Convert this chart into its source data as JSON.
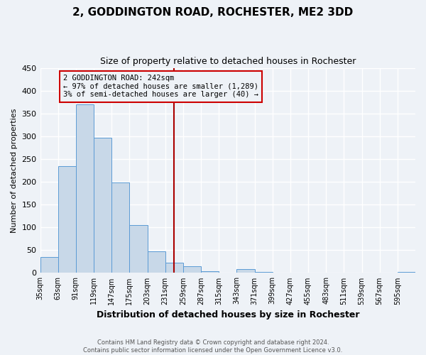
{
  "title": "2, GODDINGTON ROAD, ROCHESTER, ME2 3DD",
  "subtitle": "Size of property relative to detached houses in Rochester",
  "xlabel": "Distribution of detached houses by size in Rochester",
  "ylabel": "Number of detached properties",
  "footer_line1": "Contains HM Land Registry data © Crown copyright and database right 2024.",
  "footer_line2": "Contains public sector information licensed under the Open Government Licence v3.0.",
  "bin_labels": [
    "35sqm",
    "63sqm",
    "91sqm",
    "119sqm",
    "147sqm",
    "175sqm",
    "203sqm",
    "231sqm",
    "259sqm",
    "287sqm",
    "315sqm",
    "343sqm",
    "371sqm",
    "399sqm",
    "427sqm",
    "455sqm",
    "483sqm",
    "511sqm",
    "539sqm",
    "567sqm",
    "595sqm"
  ],
  "bar_values": [
    35,
    235,
    370,
    297,
    199,
    105,
    47,
    22,
    15,
    4,
    0,
    9,
    2,
    0,
    0,
    0,
    0,
    0,
    0,
    0,
    2
  ],
  "bar_color": "#c8d8e8",
  "bar_edge_color": "#5b9bd5",
  "vline_x": 7.5,
  "vline_color": "#aa0000",
  "annotation_title": "2 GODDINGTON ROAD: 242sqm",
  "annotation_line1": "← 97% of detached houses are smaller (1,289)",
  "annotation_line2": "3% of semi-detached houses are larger (40) →",
  "annotation_box_color": "#cc0000",
  "ylim": [
    0,
    450
  ],
  "background_color": "#eef2f7",
  "grid_color": "#ffffff",
  "yticks": [
    0,
    50,
    100,
    150,
    200,
    250,
    300,
    350,
    400,
    450
  ]
}
